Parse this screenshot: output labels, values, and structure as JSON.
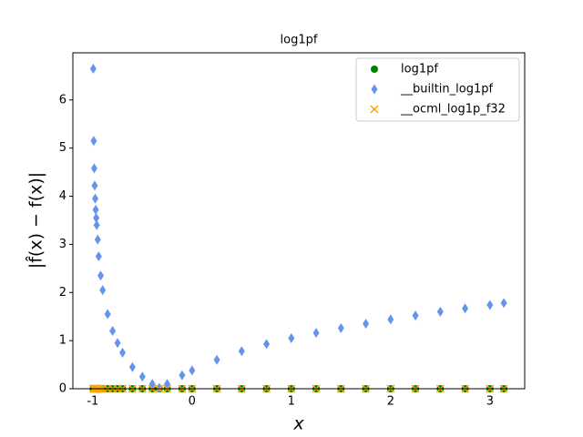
{
  "chart_data": {
    "type": "scatter",
    "title": "log1pf",
    "xlabel": "x",
    "ylabel": "|f̂(x) − f(x)|",
    "x": [
      -0.995,
      -0.99,
      -0.985,
      -0.98,
      -0.975,
      -0.97,
      -0.965,
      -0.96,
      -0.95,
      -0.94,
      -0.92,
      -0.9,
      -0.85,
      -0.8,
      -0.75,
      -0.7,
      -0.6,
      -0.5,
      -0.4,
      -0.33,
      -0.25,
      -0.1,
      0,
      0.25,
      0.5,
      0.75,
      1,
      1.25,
      1.5,
      1.75,
      2,
      2.25,
      2.5,
      2.75,
      3,
      3.14
    ],
    "series": [
      {
        "name": "log1pf",
        "color": "#008000",
        "marker": "circle",
        "values": [
          0,
          0,
          0,
          0,
          0,
          0,
          0,
          0,
          0,
          0,
          0,
          0,
          0,
          0,
          0,
          0,
          0,
          0,
          0,
          0,
          0,
          0,
          0,
          0,
          0,
          0,
          0,
          0,
          0,
          0,
          0,
          0,
          0,
          0,
          0,
          0
        ]
      },
      {
        "name": "__builtin_log1pf",
        "color": "#6495ed",
        "marker": "diamond",
        "values": [
          6.65,
          5.15,
          4.58,
          4.22,
          3.95,
          3.72,
          3.55,
          3.4,
          3.1,
          2.75,
          2.35,
          2.05,
          1.55,
          1.2,
          0.95,
          0.75,
          0.45,
          0.25,
          0.1,
          0.02,
          0.1,
          0.28,
          0.38,
          0.6,
          0.78,
          0.93,
          1.05,
          1.16,
          1.26,
          1.35,
          1.44,
          1.52,
          1.6,
          1.67,
          1.74,
          1.78
        ]
      },
      {
        "name": "__ocml_log1p_f32",
        "color": "#ffa500",
        "marker": "x",
        "values": [
          0,
          0,
          0,
          0,
          0,
          0,
          0,
          0,
          0,
          0,
          0,
          0,
          0,
          0,
          0,
          0,
          0,
          0,
          0,
          0,
          0,
          0,
          0,
          0,
          0,
          0,
          0,
          0,
          0,
          0,
          0,
          0,
          0,
          0,
          0,
          0
        ]
      }
    ],
    "xlim": [
      -1.2,
      3.35
    ],
    "xticks": [
      -1,
      0,
      1,
      2,
      3
    ],
    "ylim": [
      0,
      6.98
    ],
    "yticks": [
      0,
      1,
      2,
      3,
      4,
      5,
      6
    ],
    "legend": "upper right"
  }
}
